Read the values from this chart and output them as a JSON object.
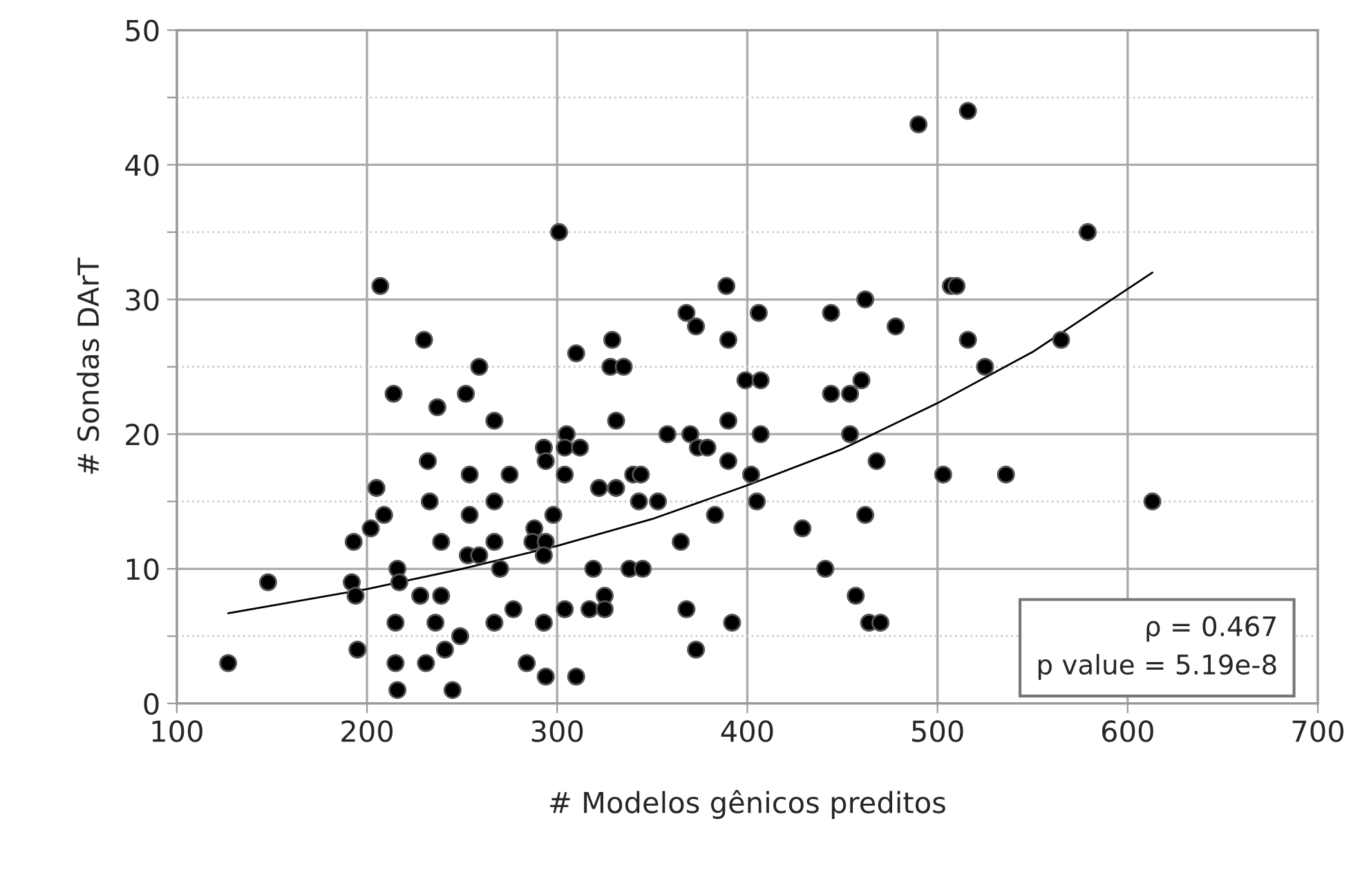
{
  "chart_data": {
    "type": "scatter",
    "xlabel": "# Modelos gênicos preditos",
    "ylabel": "# Sondas DArT",
    "xlim": [
      100,
      700
    ],
    "ylim": [
      0,
      50
    ],
    "xticks": [
      100,
      200,
      300,
      400,
      500,
      600,
      700
    ],
    "yticks": [
      0,
      {
        "value": 5,
        "label": null
      },
      10,
      {
        "value": 15,
        "label": null
      },
      20,
      {
        "value": 25,
        "label": null
      },
      30,
      {
        "value": 35,
        "label": null
      },
      40,
      {
        "value": 45,
        "label": null
      },
      50
    ],
    "grid": true,
    "marker": "circle",
    "legend": false,
    "annotations": [
      "ρ = 0.467",
      "p value = 5.19e-8"
    ],
    "series": [
      {
        "color": "#000000",
        "x": [
          207,
          230,
          259,
          214,
          237,
          252,
          232,
          254,
          205,
          233,
          209,
          254,
          202,
          193,
          239,
          253,
          259,
          148,
          216,
          192,
          217,
          194,
          228,
          239,
          215,
          236,
          249,
          195,
          241,
          127,
          215,
          231,
          216,
          245,
          301,
          389,
          368,
          406,
          373,
          329,
          390,
          310,
          328,
          335,
          399,
          407,
          267,
          331,
          390,
          305,
          358,
          370,
          407,
          293,
          304,
          312,
          374,
          379,
          294,
          390,
          275,
          304,
          340,
          344,
          402,
          322,
          331,
          267,
          343,
          353,
          405,
          298,
          383,
          288,
          267,
          287,
          294,
          293,
          365,
          270,
          319,
          338,
          345,
          325,
          267,
          277,
          293,
          304,
          317,
          325,
          368,
          392,
          284,
          294,
          310,
          373,
          490,
          516,
          579,
          507,
          510,
          462,
          444,
          478,
          516,
          565,
          525,
          460,
          444,
          454,
          454,
          468,
          503,
          536,
          613,
          429,
          462,
          441,
          457,
          464,
          470
        ],
        "values": [
          31,
          27,
          25,
          23,
          22,
          23,
          18,
          17,
          16,
          15,
          14,
          14,
          13,
          12,
          12,
          11,
          11,
          9,
          10,
          9,
          9,
          8,
          8,
          8,
          6,
          6,
          5,
          4,
          4,
          3,
          3,
          3,
          1,
          1,
          35,
          31,
          29,
          29,
          28,
          27,
          27,
          26,
          25,
          25,
          24,
          24,
          21,
          21,
          21,
          20,
          20,
          20,
          20,
          19,
          19,
          19,
          19,
          19,
          18,
          18,
          17,
          17,
          17,
          17,
          17,
          16,
          16,
          15,
          15,
          15,
          15,
          14,
          14,
          13,
          12,
          12,
          12,
          11,
          12,
          10,
          10,
          10,
          10,
          8,
          6,
          7,
          6,
          7,
          7,
          7,
          7,
          6,
          3,
          2,
          2,
          4,
          43,
          44,
          35,
          31,
          31,
          30,
          29,
          28,
          27,
          27,
          25,
          24,
          23,
          23,
          20,
          18,
          17,
          17,
          15,
          13,
          14,
          10,
          8,
          6,
          6
        ]
      },
      {
        "type": "line",
        "color": "#000000",
        "marker": "none",
        "x": [
          127,
          200,
          250,
          300,
          350,
          400,
          450,
          500,
          550,
          613
        ],
        "values": [
          6.7,
          8.5,
          10.0,
          11.7,
          13.7,
          16.2,
          18.9,
          22.3,
          26.1,
          32
        ]
      }
    ]
  }
}
